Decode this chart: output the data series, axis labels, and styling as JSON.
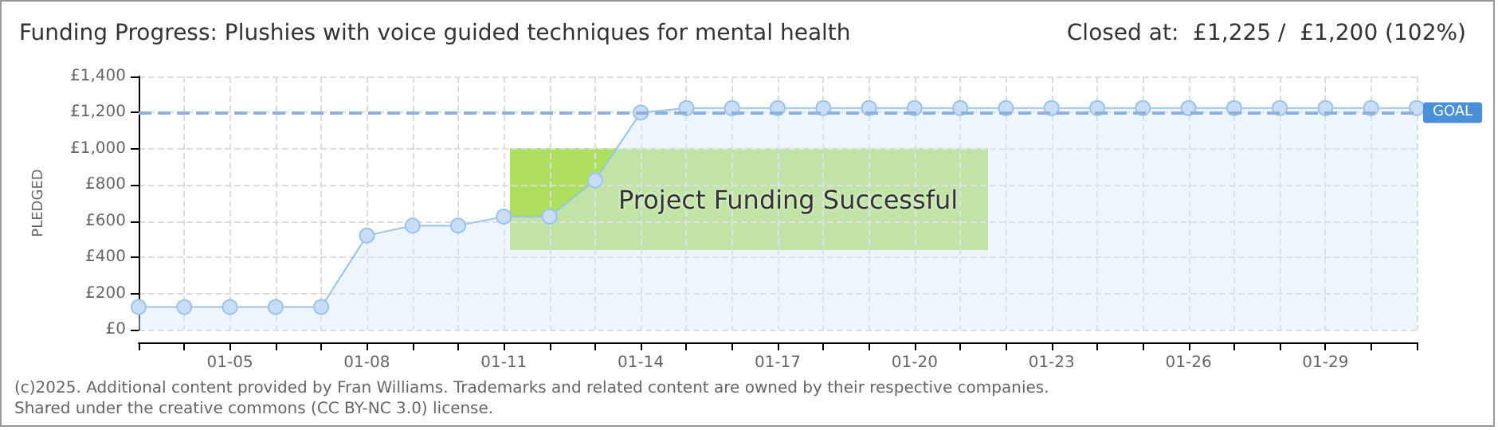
{
  "chart_data": {
    "type": "area",
    "title": "Funding Progress: Plushies with voice guided techniques for mental health",
    "subtitle": "Closed at:  £1,225 /  £1,200 (102%)",
    "ylabel": "PLEDGED",
    "categories": [
      null,
      null,
      "01-05",
      null,
      null,
      "01-08",
      null,
      null,
      "01-11",
      null,
      null,
      "01-14",
      null,
      null,
      "01-17",
      null,
      null,
      "01-20",
      null,
      null,
      "01-23",
      null,
      null,
      "01-26",
      null,
      null,
      "01-29",
      null,
      null
    ],
    "series": [
      {
        "color": "#9cc3ea",
        "values": [
          125,
          125,
          125,
          125,
          125,
          520,
          575,
          575,
          625,
          625,
          825,
          1200,
          1225,
          1225,
          1225,
          1225,
          1225,
          1225,
          1225,
          1225,
          1225,
          1225,
          1225,
          1225,
          1225,
          1225,
          1225,
          1225,
          1225
        ]
      }
    ],
    "ylim": [
      0,
      1400
    ],
    "yticks": [
      {
        "value": 0,
        "label": "£0"
      },
      {
        "value": 200,
        "label": "£200"
      },
      {
        "value": 400,
        "label": "£400"
      },
      {
        "value": 600,
        "label": "£600"
      },
      {
        "value": 800,
        "label": "£800"
      },
      {
        "value": 1000,
        "label": "£1,000"
      },
      {
        "value": 1200,
        "label": "£1,200"
      },
      {
        "value": 1400,
        "label": "£1,400"
      }
    ],
    "ref_lines": [
      {
        "axis": "y",
        "value": 1200,
        "label": "GOAL",
        "color": "#8fb0d8",
        "line_style": "dashed"
      }
    ],
    "grid": true,
    "marker": "circle",
    "annotations": [
      "Project Funding Successful",
      "(c)2025. Additional content provided by Fran Williams. Trademarks and related content are owned by their respective companies.",
      "Shared under the creative commons (CC BY-NC 3.0) license."
    ]
  }
}
